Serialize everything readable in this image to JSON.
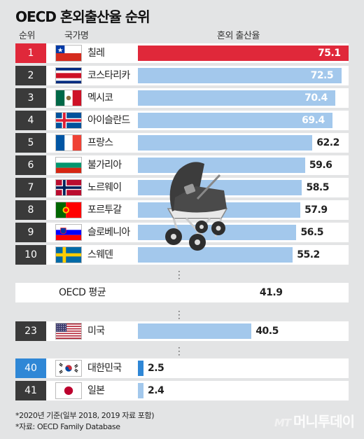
{
  "header": {
    "title": "OECD 혼외출산율 순위",
    "col_rank": "순위",
    "col_country": "국가명",
    "col_rate": "혼외 출산율"
  },
  "chart_data": {
    "type": "bar",
    "title": "OECD 혼외출산율 순위",
    "xlim": [
      0,
      75.1
    ],
    "rows": [
      {
        "rank": "1",
        "country": "칠레",
        "value": 75.1,
        "label": "75.1",
        "flag": "chile-flag"
      },
      {
        "rank": "2",
        "country": "코스타리카",
        "value": 72.5,
        "label": "72.5",
        "flag": "costa-rica-flag"
      },
      {
        "rank": "3",
        "country": "멕시코",
        "value": 70.4,
        "label": "70.4",
        "flag": "mexico-flag"
      },
      {
        "rank": "4",
        "country": "아이슬란드",
        "value": 69.4,
        "label": "69.4",
        "flag": "iceland-flag"
      },
      {
        "rank": "5",
        "country": "프랑스",
        "value": 62.2,
        "label": "62.2",
        "flag": "france-flag"
      },
      {
        "rank": "6",
        "country": "불가리아",
        "value": 59.6,
        "label": "59.6",
        "flag": "bulgaria-flag"
      },
      {
        "rank": "7",
        "country": "노르웨이",
        "value": 58.5,
        "label": "58.5",
        "flag": "norway-flag"
      },
      {
        "rank": "8",
        "country": "포르투갈",
        "value": 57.9,
        "label": "57.9",
        "flag": "portugal-flag"
      },
      {
        "rank": "9",
        "country": "슬로베니아",
        "value": 56.5,
        "label": "56.5",
        "flag": "slovenia-flag"
      },
      {
        "rank": "10",
        "country": "스웨덴",
        "value": 55.2,
        "label": "55.2",
        "flag": "sweden-flag"
      },
      {
        "rank": "",
        "country": "OECD 평균",
        "value": 41.9,
        "label": "41.9",
        "flag": ""
      },
      {
        "rank": "23",
        "country": "미국",
        "value": 40.5,
        "label": "40.5",
        "flag": "usa-flag"
      },
      {
        "rank": "40",
        "country": "대한민국",
        "value": 2.5,
        "label": "2.5",
        "flag": "korea-flag"
      },
      {
        "rank": "41",
        "country": "일본",
        "value": 2.4,
        "label": "2.4",
        "flag": "japan-flag"
      }
    ]
  },
  "colors": {
    "top_rank": "#e0283a",
    "rank_default": "#3a3a3a",
    "rank_highlight": "#2f87d6",
    "bar_default": "#a3c8ec",
    "bar_top": "#e0283a",
    "bar_korea": "#2f87d6"
  },
  "illustration": "baby-stroller-icon",
  "notes": {
    "base_year": "*2020년 기준(일부 2018, 2019 자료 포함)",
    "source": "*자료: OECD Family Database"
  },
  "logo": {
    "mt": "MT",
    "name": "머니투데이"
  }
}
